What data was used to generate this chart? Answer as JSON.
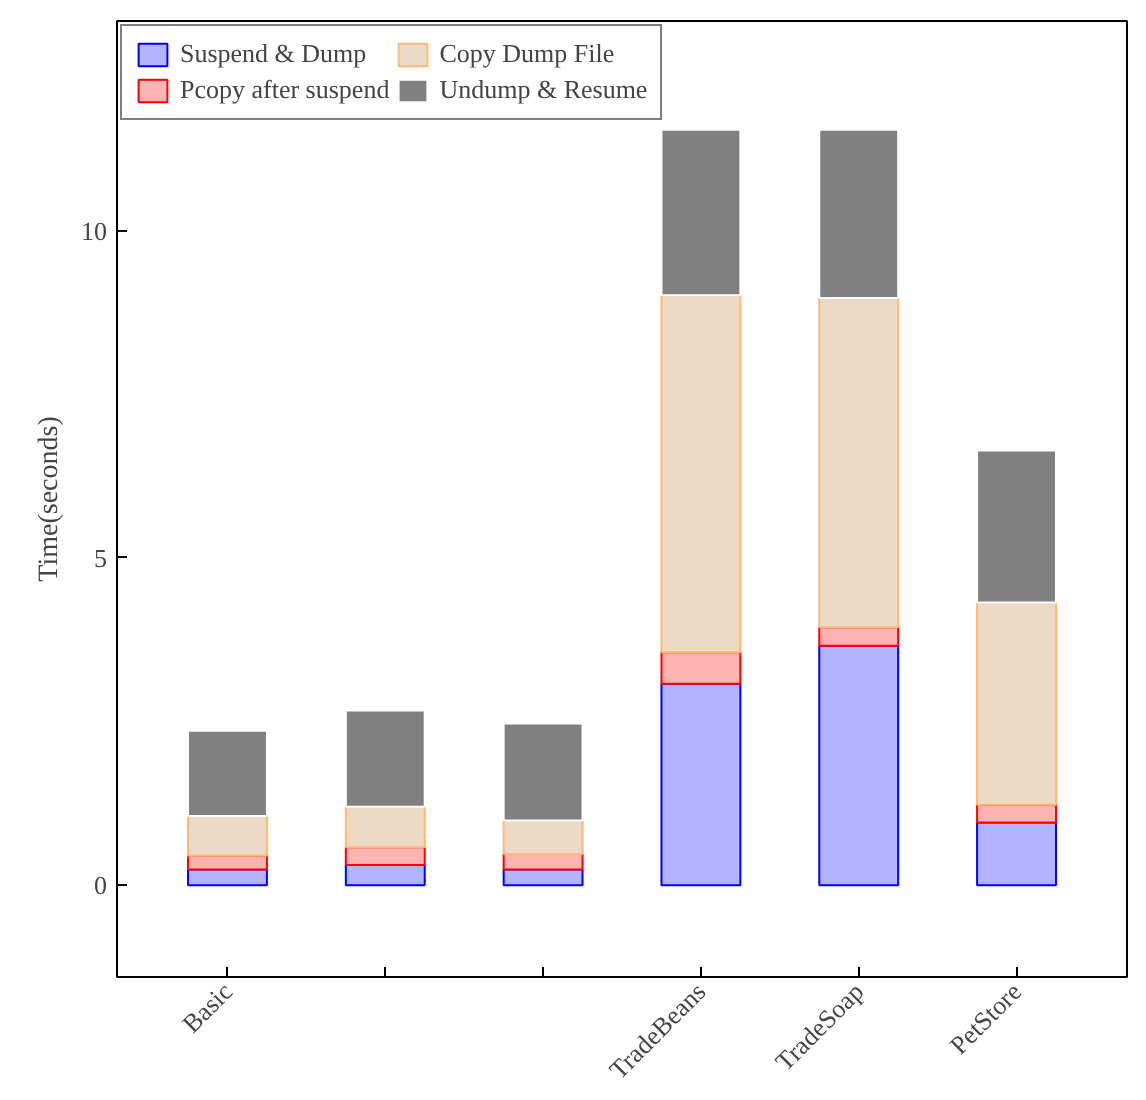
{
  "chart_data": {
    "type": "bar",
    "stacked": true,
    "ylabel": "Time(seconds)",
    "categories": [
      "Basic",
      null,
      null,
      "TradeBeans",
      "TradeSoap",
      "PetStore"
    ],
    "series": [
      {
        "name": "Suspend & Dump",
        "color": "#b3b3ff",
        "values": [
          0.24,
          0.31,
          0.24,
          3.08,
          3.66,
          0.96
        ]
      },
      {
        "name": "Pcopy after suspend",
        "color": "#ffb3b3",
        "values": [
          0.21,
          0.27,
          0.24,
          0.48,
          0.28,
          0.27
        ]
      },
      {
        "name": "Copy Dump File",
        "color": "#ecd9c6",
        "values": [
          0.61,
          0.62,
          0.51,
          5.45,
          5.03,
          3.09
        ]
      },
      {
        "name": "Undump & Resume",
        "color": "#808080",
        "values": [
          1.3,
          1.47,
          1.48,
          2.53,
          2.57,
          2.32
        ]
      }
    ],
    "ylim": [
      -1.4,
      13.2
    ],
    "yticks": [
      0,
      5,
      10
    ],
    "grid": false,
    "legend": "top left"
  }
}
